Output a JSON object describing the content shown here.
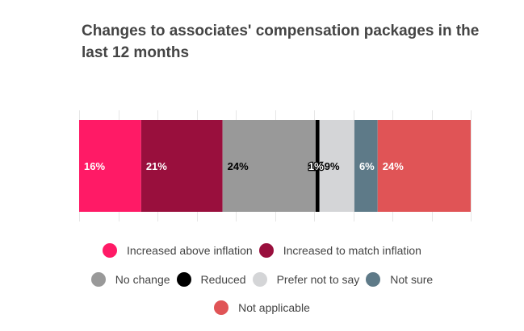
{
  "chart_data": {
    "type": "bar",
    "orientation": "horizontal",
    "stacked": true,
    "title": "Changes to associates' compensation packages in the last 12 months",
    "xlabel": "",
    "ylabel": "",
    "xlim": [
      0,
      100
    ],
    "grid": true,
    "x_ticks": [
      0,
      10,
      20,
      30,
      40,
      50,
      60,
      70,
      80,
      90,
      100
    ],
    "tick_labels_visible": false,
    "legend_position": "bottom",
    "categories": [
      ""
    ],
    "series": [
      {
        "name": "Increased above inflation",
        "values": [
          16
        ],
        "label": "16%",
        "color": "#ff1a66",
        "label_color": "#ffffff"
      },
      {
        "name": "Increased to match inflation",
        "values": [
          21
        ],
        "label": "21%",
        "color": "#990f3d",
        "label_color": "#ffffff"
      },
      {
        "name": "No change",
        "values": [
          24
        ],
        "label": "24%",
        "color": "#999999",
        "label_color": "#000000"
      },
      {
        "name": "Reduced",
        "values": [
          1
        ],
        "label": "1%",
        "color": "#000000",
        "label_color": "#ffffff"
      },
      {
        "name": "Prefer not to say",
        "values": [
          9
        ],
        "label": "9%",
        "color": "#d4d5d7",
        "label_color": "#000000"
      },
      {
        "name": "Not sure",
        "values": [
          6
        ],
        "label": "6%",
        "color": "#5e7a88",
        "label_color": "#ffffff"
      },
      {
        "name": "Not applicable",
        "values": [
          24
        ],
        "label": "24%",
        "color": "#e05456",
        "label_color": "#ffffff"
      }
    ]
  },
  "legend_rows": [
    [
      0,
      1
    ],
    [
      2,
      3,
      4,
      5
    ],
    [
      6
    ]
  ]
}
